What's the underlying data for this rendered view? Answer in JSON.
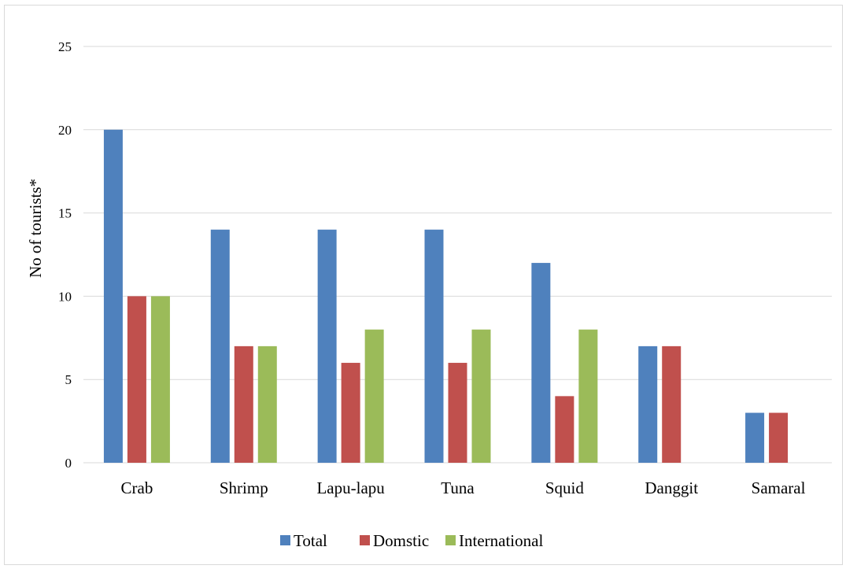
{
  "chart_data": {
    "type": "bar",
    "title": "",
    "xlabel": "",
    "ylabel": "No of tourists*",
    "ylim": [
      0,
      25
    ],
    "yticks": [
      0,
      5,
      10,
      15,
      20,
      25
    ],
    "grid": true,
    "legend_position": "bottom",
    "categories": [
      "Crab",
      "Shrimp",
      "Lapu-lapu",
      "Tuna",
      "Squid",
      "Danggit",
      "Samaral"
    ],
    "series": [
      {
        "name": "Total",
        "color": "#4f81bd",
        "values": [
          20,
          14,
          14,
          14,
          12,
          7,
          3
        ]
      },
      {
        "name": "Domstic",
        "color": "#c0504d",
        "values": [
          10,
          7,
          6,
          6,
          4,
          7,
          3
        ]
      },
      {
        "name": "International",
        "color": "#9bbb59",
        "values": [
          10,
          7,
          8,
          8,
          8,
          0,
          0
        ]
      }
    ]
  }
}
